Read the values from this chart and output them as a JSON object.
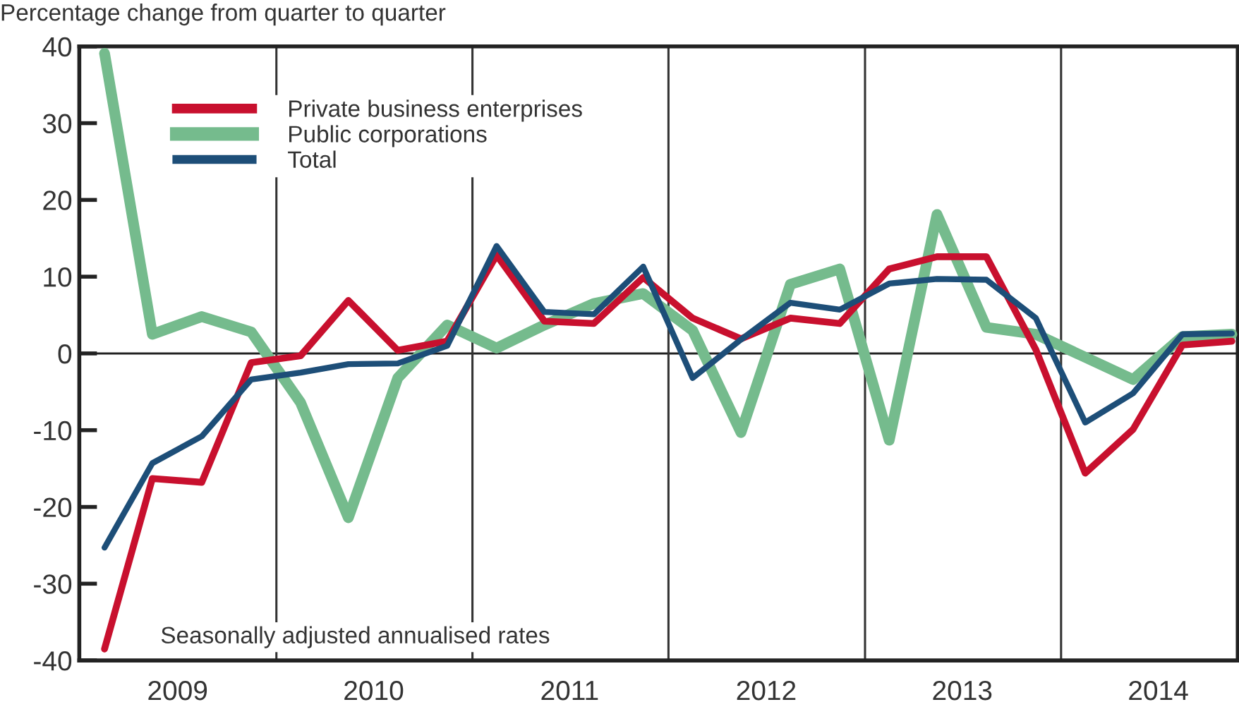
{
  "chart_data": {
    "type": "line",
    "subtitle": "Percentage change from quarter to quarter",
    "x": [
      "2009-02-15",
      "2009-05-15",
      "2009-08-15",
      "2009-11-15",
      "2010-02-15",
      "2010-05-15",
      "2010-08-15",
      "2010-11-15",
      "2011-02-15",
      "2011-05-15",
      "2011-08-15",
      "2011-11-15",
      "2012-02-15",
      "2012-05-15",
      "2012-08-15",
      "2012-11-15",
      "2013-02-15",
      "2013-05-15",
      "2013-08-15",
      "2013-11-15",
      "2014-02-15",
      "2014-05-15",
      "2014-08-15",
      "2014-11-15"
    ],
    "xlim": [
      "2008-12-30",
      "2014-11-26"
    ],
    "xticks": [
      {
        "value": "2009-07-01",
        "label": "2009"
      },
      {
        "value": "2010-07-01",
        "label": "2010"
      },
      {
        "value": "2011-07-01",
        "label": "2011"
      },
      {
        "value": "2012-07-01",
        "label": "2012"
      },
      {
        "value": "2013-07-01",
        "label": "2013"
      },
      {
        "value": "2014-07-01",
        "label": "2014"
      }
    ],
    "ylim": [
      -40,
      40
    ],
    "yticks": [
      -40,
      -30,
      -20,
      -10,
      0,
      10,
      20,
      30,
      40
    ],
    "series": [
      {
        "name": "Private business enterprises",
        "color": "#c8102e",
        "values": [
          -38.5,
          -16.3,
          -16.8,
          -1.2,
          -0.3,
          6.9,
          0.4,
          1.6,
          12.8,
          4.2,
          3.9,
          9.9,
          4.6,
          1.9,
          4.6,
          3.9,
          11.0,
          12.6,
          12.6,
          0.5,
          -15.6,
          -9.9,
          1.1,
          1.6
        ]
      },
      {
        "name": "Public corporations",
        "color": "#75bb8d",
        "values": [
          39.1,
          2.5,
          4.8,
          2.8,
          -6.4,
          -21.4,
          -3.2,
          3.7,
          0.7,
          3.7,
          6.5,
          7.8,
          3.0,
          -10.3,
          9.0,
          11.0,
          -11.3,
          18.1,
          3.4,
          2.5,
          -0.5,
          -3.4,
          2.2,
          2.5
        ]
      },
      {
        "name": "Total",
        "color": "#1d4e78",
        "values": [
          -25.3,
          -14.3,
          -10.8,
          -3.4,
          -2.5,
          -1.4,
          -1.3,
          1.0,
          14.0,
          5.4,
          5.1,
          11.3,
          -3.2,
          1.8,
          6.6,
          5.7,
          9.1,
          9.7,
          9.6,
          4.6,
          -9.0,
          -5.2,
          2.5,
          2.6
        ]
      }
    ],
    "ref_lines": [
      {
        "axis": "y",
        "value": 0,
        "color": "#222222"
      },
      {
        "axis": "x",
        "value": "2010-01-01",
        "color": "#333333"
      },
      {
        "axis": "x",
        "value": "2011-01-01",
        "color": "#333333"
      },
      {
        "axis": "x",
        "value": "2012-01-01",
        "color": "#333333"
      },
      {
        "axis": "x",
        "value": "2013-01-01",
        "color": "#333333"
      },
      {
        "axis": "x",
        "value": "2014-01-01",
        "color": "#333333"
      }
    ],
    "annotations": [
      "Seasonally adjusted annualised rates"
    ],
    "legend": "top left",
    "grid": false,
    "marker": "none",
    "line_style": "solid"
  }
}
